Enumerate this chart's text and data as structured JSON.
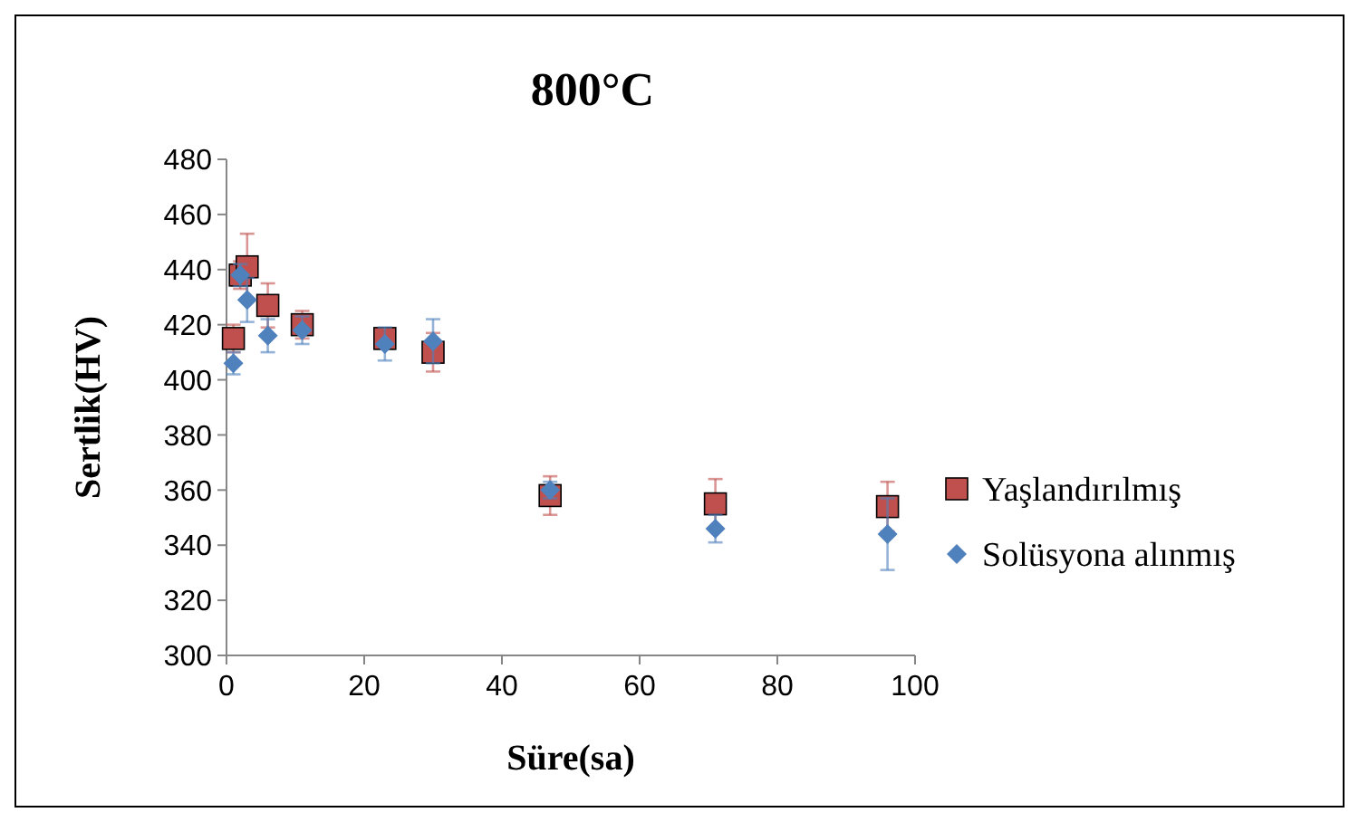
{
  "chart_data": {
    "type": "scatter",
    "title": "800°C",
    "xlabel": "Süre(sa)",
    "ylabel": "Sertlik(HV)",
    "xlim": [
      0,
      100
    ],
    "xticks": [
      0,
      20,
      40,
      60,
      80,
      100
    ],
    "ylim": [
      300,
      480
    ],
    "yticks": [
      300,
      320,
      340,
      360,
      380,
      400,
      420,
      440,
      460,
      480
    ],
    "grid": false,
    "legend": "right",
    "series": [
      {
        "name": "Yaşlandırılmış",
        "color": "#c0504d",
        "marker": "square",
        "x": [
          1,
          2,
          3,
          6,
          11,
          23,
          30,
          47,
          71,
          96
        ],
        "values": [
          415,
          438,
          441,
          427,
          420,
          415,
          410,
          358,
          355,
          354
        ],
        "errors": [
          5,
          5,
          12,
          8,
          5,
          3,
          7,
          7,
          9,
          9
        ]
      },
      {
        "name": "Solüsyona alınmış",
        "color": "#4f81bd",
        "marker": "diamond",
        "x": [
          1,
          2,
          3,
          6,
          11,
          23,
          30,
          47,
          71,
          96
        ],
        "values": [
          406,
          438,
          429,
          416,
          418,
          413,
          414,
          360,
          346,
          344
        ],
        "errors": [
          4,
          4,
          8,
          6,
          5,
          6,
          8,
          3,
          5,
          13
        ]
      }
    ]
  }
}
